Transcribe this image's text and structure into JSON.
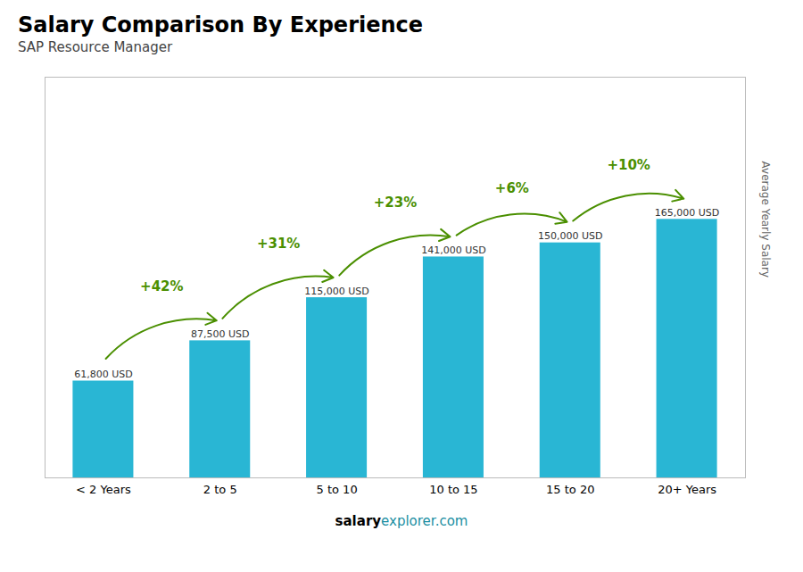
{
  "chart_data": {
    "type": "bar",
    "title": "Salary Comparison By Experience",
    "subtitle": "SAP Resource Manager",
    "categories": [
      "< 2 Years",
      "2 to 5",
      "5 to 10",
      "10 to 15",
      "15 to 20",
      "20+ Years"
    ],
    "values": [
      61800,
      87500,
      115000,
      141000,
      150000,
      165000
    ],
    "value_labels": [
      "61,800 USD",
      "87,500 USD",
      "115,000 USD",
      "141,000 USD",
      "150,000 USD",
      "165,000 USD"
    ],
    "data_labels": true,
    "color": "#29b6d4",
    "ylabel": "Average Yearly Salary",
    "ylim": [
      0,
      255750
    ],
    "yticks": [],
    "tick_labels": "x",
    "grid": false,
    "annotations": [
      {
        "text": "+42%",
        "from": "< 2 Years",
        "to": "2 to 5"
      },
      {
        "text": "+31%",
        "from": "2 to 5",
        "to": "5 to 10"
      },
      {
        "text": "+23%",
        "from": "5 to 10",
        "to": "10 to 15"
      },
      {
        "text": "+6%",
        "from": "10 to 15",
        "to": "15 to 20"
      },
      {
        "text": "+10%",
        "from": "15 to 20",
        "to": "20+ Years"
      }
    ],
    "footer": [
      "salary",
      "explorer.com"
    ]
  }
}
